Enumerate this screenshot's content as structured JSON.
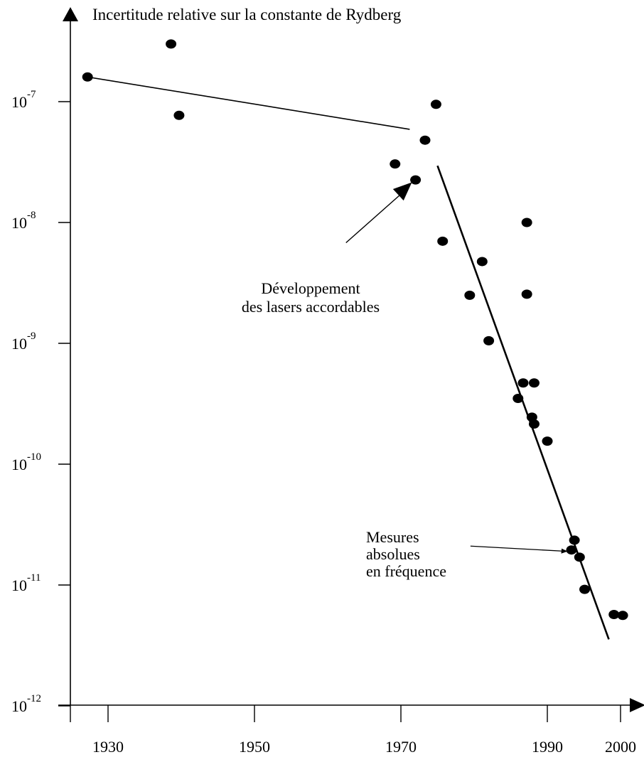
{
  "chart_data": {
    "type": "scatter",
    "title": "",
    "ylabel": "Incertitude relative sur la constante de Rydberg",
    "xlabel": "",
    "x_ticks": [
      1930,
      1950,
      1970,
      1990,
      2000
    ],
    "y_scale": "log",
    "y_ticks": [
      {
        "base": "10",
        "exp": "-7",
        "value": 1e-07
      },
      {
        "base": "10",
        "exp": "-8",
        "value": 1e-08
      },
      {
        "base": "10",
        "exp": "-9",
        "value": 1e-09
      },
      {
        "base": "10",
        "exp": "-10",
        "value": 1e-10
      },
      {
        "base": "10",
        "exp": "-11",
        "value": 1e-11
      },
      {
        "base": "10",
        "exp": "-12",
        "value": 1e-12
      }
    ],
    "xlim": [
      1925.5,
      2004
    ],
    "ylim": [
      1e-12,
      3.2e-07
    ],
    "grid": false,
    "points": [
      {
        "x": 1927.2,
        "y": 1.6e-07
      },
      {
        "x": 1938.6,
        "y": 3e-07
      },
      {
        "x": 1939.7,
        "y": 7.7e-08
      },
      {
        "x": 1969.2,
        "y": 3.05e-08
      },
      {
        "x": 1972.0,
        "y": 2.25e-08
      },
      {
        "x": 1973.3,
        "y": 4.8e-08
      },
      {
        "x": 1974.8,
        "y": 9.5e-08
      },
      {
        "x": 1975.7,
        "y": 7e-09
      },
      {
        "x": 1979.4,
        "y": 2.5e-09
      },
      {
        "x": 1981.1,
        "y": 4.75e-09
      },
      {
        "x": 1982.0,
        "y": 1.05e-09
      },
      {
        "x": 1986.0,
        "y": 3.5e-10
      },
      {
        "x": 1986.7,
        "y": 4.7e-10
      },
      {
        "x": 1987.2,
        "y": 1e-08
      },
      {
        "x": 1987.2,
        "y": 2.55e-09
      },
      {
        "x": 1987.9,
        "y": 2.45e-10
      },
      {
        "x": 1988.2,
        "y": 2.15e-10
      },
      {
        "x": 1988.2,
        "y": 4.7e-10
      },
      {
        "x": 1990.0,
        "y": 1.55e-10
      },
      {
        "x": 1993.3,
        "y": 1.95e-11
      },
      {
        "x": 1993.7,
        "y": 2.35e-11
      },
      {
        "x": 1994.4,
        "y": 1.7e-11
      },
      {
        "x": 1995.1,
        "y": 9.2e-12
      },
      {
        "x": 1999.1,
        "y": 5.7e-12
      },
      {
        "x": 2000.3,
        "y": 5.6e-12
      }
    ],
    "trend_lines": [
      {
        "from": {
          "x": 1927.2,
          "y": 1.6e-07
        },
        "to": {
          "x": 1971.2,
          "y": 5.9e-08
        }
      },
      {
        "from": {
          "x": 1975.0,
          "y": 2.95e-08
        },
        "to": {
          "x": 1998.4,
          "y": 3.55e-12
        }
      }
    ],
    "annotations": [
      {
        "lines": [
          "Développement",
          "des lasers accordables"
        ],
        "arrow_from": {
          "x": 1962.5,
          "y": 6.8e-09
        },
        "arrow_to": {
          "x": 1971.5,
          "y": 2.15e-08
        }
      },
      {
        "lines": [
          "Mesures",
          "absolues",
          "en fréquence"
        ],
        "arrow_from": {
          "x": 1979.5,
          "y": 2.1e-11
        },
        "arrow_to": {
          "x": 1992.7,
          "y": 1.9e-11
        }
      }
    ]
  }
}
